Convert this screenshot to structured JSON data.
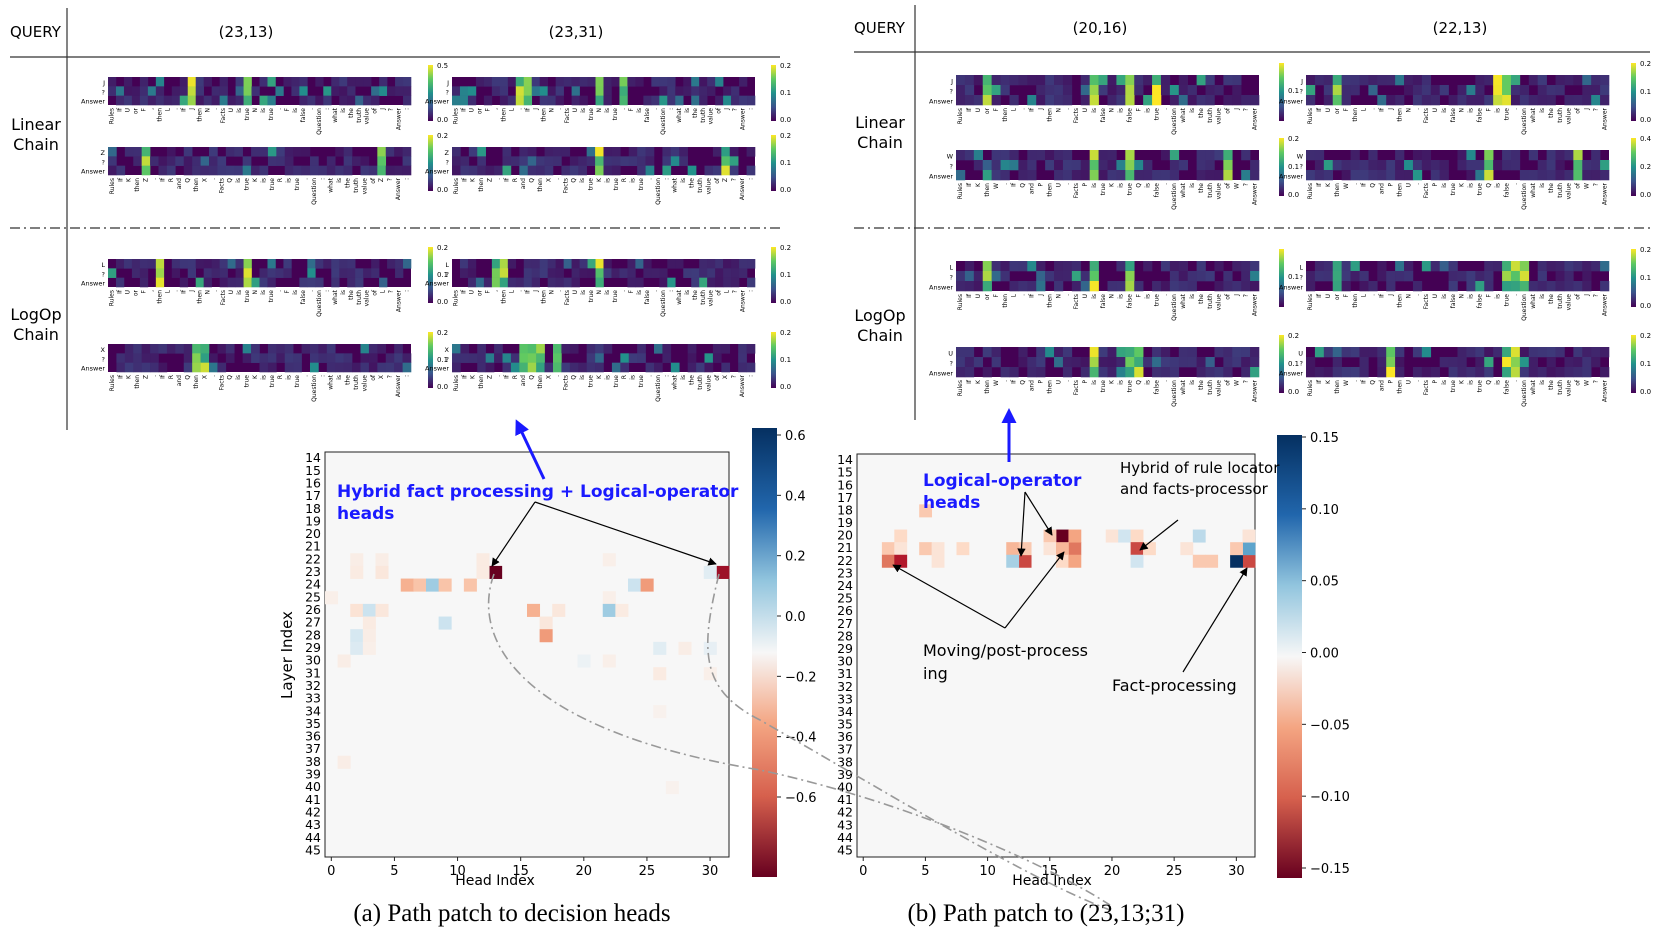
{
  "panel_a": {
    "query_header": "QUERY",
    "queries": [
      "(23,13)",
      "(23,31)"
    ],
    "row_groups": [
      {
        "label_lines": [
          "Linear",
          "Chain"
        ]
      },
      {
        "label_lines": [
          "LogOp",
          "Chain"
        ]
      }
    ],
    "colorbar_ticks": [
      [
        "0.0",
        "0.5"
      ],
      [
        "0.0",
        "0.1",
        "0.2"
      ],
      [
        "0.0",
        "0.2"
      ],
      [
        "0.0",
        "0.1",
        "0.2"
      ],
      [
        "0.0",
        "0.1",
        "0.2"
      ],
      [
        "0.0",
        "0.1",
        "0.2"
      ],
      [
        "0.0",
        "0.1",
        "0.2"
      ],
      [
        "0.0",
        "0.1",
        "0.2"
      ]
    ],
    "caption": "(a) Path patch to decision heads",
    "annotation_blue": [
      "Hybrid fact processing + Logical-operator",
      "heads"
    ]
  },
  "panel_b": {
    "query_header": "QUERY",
    "queries": [
      "(20,16)",
      "(22,13)"
    ],
    "row_groups": [
      {
        "label_lines": [
          "Linear",
          "Chain"
        ]
      },
      {
        "label_lines": [
          "LogOp",
          "Chain"
        ]
      }
    ],
    "colorbar_ticks": [
      [
        "0.1"
      ],
      [
        "0.0",
        "0.1",
        "0.2"
      ],
      [
        "0.0",
        "0.1",
        "0.2"
      ],
      [
        "0.0",
        "0.2",
        "0.4"
      ],
      [
        "0.1"
      ],
      [
        "0.0",
        "0.1",
        "0.2"
      ],
      [
        "0.0",
        "0.1",
        "0.2"
      ],
      [
        "0.0",
        "0.1",
        "0.2"
      ]
    ],
    "caption": "(b) Path patch to (23,13;31)",
    "annotation_blue": [
      "Logical-operator",
      "heads"
    ],
    "annotation_hybrid": [
      "Hybrid of rule locator",
      "and facts-processor"
    ],
    "annotation_moving": [
      "Moving/post-process",
      "ing"
    ],
    "annotation_fact": "Fact-processing"
  },
  "attention_token_labels": {
    "linear_top": [
      "Rules",
      "If",
      "U",
      "or",
      "F",
      ",",
      "then",
      "L",
      ".",
      "If",
      "J",
      "then",
      "N",
      ".",
      "Facts",
      "U",
      "is",
      "true",
      "N",
      "is",
      "true",
      ".",
      "F",
      "is",
      "false",
      ".",
      "Question",
      ":",
      "what",
      "is",
      "the",
      "truth",
      "value",
      "of",
      "J",
      "?",
      "Answer",
      ":"
    ],
    "linear_bottom": [
      "Rules",
      "If",
      "K",
      "then",
      "Z",
      ".",
      "If",
      "R",
      "and",
      "Q",
      "then",
      "X",
      ".",
      "Facts",
      "Q",
      "is",
      "true",
      "K",
      "is",
      "true",
      "R",
      "is",
      "true",
      ".",
      "Question",
      ":",
      "what",
      "is",
      "the",
      "truth",
      "value",
      "of",
      "Z",
      "?",
      "Answer",
      ":"
    ],
    "logop_top": [
      "Rules",
      "If",
      "U",
      "or",
      "F",
      ",",
      "then",
      "L",
      ".",
      "If",
      "J",
      "then",
      "N",
      ".",
      "Facts",
      "U",
      "is",
      "true",
      "N",
      "is",
      "true",
      ".",
      "F",
      "is",
      "false",
      ".",
      "Question",
      ":",
      "what",
      "is",
      "the",
      "truth",
      "value",
      "of",
      "L",
      "?",
      "Answer",
      ":"
    ],
    "logop_bottom": [
      "Rules",
      "If",
      "K",
      "then",
      "Z",
      ".",
      "If",
      "R",
      "and",
      "Q",
      "then",
      "X",
      ".",
      "Facts",
      "Q",
      "is",
      "true",
      "K",
      "is",
      "true",
      "R",
      "is",
      "true",
      ".",
      "Question",
      ":",
      "what",
      "is",
      "the",
      "truth",
      "value",
      "of",
      "X",
      "?",
      "Answer",
      ":"
    ],
    "b_linear_top": [
      "Rules",
      "If",
      "U",
      "or",
      "F",
      "then",
      "L",
      ".",
      "If",
      "J",
      "then",
      "N",
      ".",
      "Facts",
      "U",
      "is",
      "false",
      "N",
      "is",
      "false",
      "F",
      "is",
      "true",
      ".",
      "Question",
      "what",
      "is",
      "the",
      "truth",
      "value",
      "of",
      "J",
      "?",
      "Answer"
    ],
    "b_linear_bottom": [
      "Rules",
      "If",
      "K",
      "then",
      "W",
      ".",
      "If",
      "Q",
      "and",
      "P",
      "then",
      "U",
      ".",
      "Facts",
      "P",
      "is",
      "true",
      "K",
      "is",
      "true",
      "Q",
      "is",
      "false",
      ".",
      "Question",
      "what",
      "is",
      "the",
      "truth",
      "value",
      "of",
      "W",
      "?",
      "Answer"
    ],
    "row_tail_top": [
      "J",
      "?",
      "Answer"
    ],
    "row_tail_bottom": [
      "Z",
      "?",
      "Answer"
    ],
    "row_tail_logop_top": [
      "L",
      "?",
      "Answer"
    ],
    "row_tail_logop_bottom": [
      "X",
      "?",
      "Answer"
    ],
    "b_row_tail_top": [
      "J",
      "?",
      "Answer"
    ],
    "b_row_tail_bottom": [
      "W",
      "?",
      "Answer"
    ],
    "b_row_tail_logop_top": [
      "L",
      "?",
      "Answer"
    ],
    "b_row_tail_logop_bottom": [
      "U",
      "?",
      "Answer"
    ]
  },
  "chart_data": [
    {
      "type": "heatmap",
      "title": "",
      "xlabel": "Head Index",
      "ylabel": "Layer Index",
      "x_ticks": [
        0,
        5,
        10,
        15,
        20,
        25,
        30
      ],
      "y_categories": [
        14,
        15,
        16,
        17,
        18,
        19,
        20,
        21,
        22,
        23,
        24,
        25,
        26,
        27,
        28,
        29,
        30,
        31,
        32,
        33,
        34,
        35,
        36,
        37,
        38,
        39,
        40,
        41,
        42,
        43,
        44,
        45
      ],
      "xlim": [
        0,
        31
      ],
      "colorbar_range": [
        -0.7,
        0.7
      ],
      "colorbar_ticks": [
        "0.6",
        "0.4",
        "0.2",
        "0.0",
        "−0.2",
        "−0.4",
        "−0.6"
      ],
      "cells": [
        [
          23,
          13,
          -0.7
        ],
        [
          23,
          31,
          -0.6
        ],
        [
          22,
          2,
          -0.05
        ],
        [
          22,
          4,
          -0.05
        ],
        [
          22,
          12,
          -0.06
        ],
        [
          22,
          22,
          -0.04
        ],
        [
          24,
          6,
          -0.25
        ],
        [
          24,
          7,
          -0.2
        ],
        [
          24,
          8,
          0.25
        ],
        [
          24,
          9,
          -0.2
        ],
        [
          24,
          11,
          -0.2
        ],
        [
          24,
          24,
          0.15
        ],
        [
          24,
          25,
          -0.3
        ],
        [
          23,
          2,
          -0.06
        ],
        [
          23,
          4,
          -0.08
        ],
        [
          23,
          12,
          -0.06
        ],
        [
          23,
          30,
          0.08
        ],
        [
          25,
          0,
          -0.04
        ],
        [
          25,
          22,
          -0.04
        ],
        [
          26,
          2,
          -0.1
        ],
        [
          26,
          3,
          0.15
        ],
        [
          26,
          4,
          -0.08
        ],
        [
          26,
          16,
          -0.25
        ],
        [
          26,
          18,
          -0.08
        ],
        [
          26,
          22,
          0.25
        ],
        [
          26,
          23,
          -0.06
        ],
        [
          27,
          3,
          -0.06
        ],
        [
          27,
          9,
          0.15
        ],
        [
          27,
          17,
          -0.08
        ],
        [
          28,
          2,
          0.12
        ],
        [
          28,
          3,
          -0.05
        ],
        [
          28,
          17,
          -0.3
        ],
        [
          29,
          2,
          0.1
        ],
        [
          29,
          3,
          -0.04
        ],
        [
          29,
          26,
          0.08
        ],
        [
          29,
          28,
          -0.05
        ],
        [
          29,
          30,
          0.06
        ],
        [
          30,
          1,
          -0.05
        ],
        [
          30,
          20,
          0.04
        ],
        [
          30,
          22,
          -0.04
        ],
        [
          31,
          26,
          -0.06
        ],
        [
          31,
          30,
          -0.04
        ],
        [
          38,
          1,
          -0.05
        ],
        [
          40,
          27,
          -0.03
        ],
        [
          34,
          26,
          -0.03
        ]
      ],
      "annotation": "Hybrid fact processing + Logical-operator heads"
    },
    {
      "type": "heatmap",
      "title": "",
      "xlabel": "Head Index",
      "ylabel": "",
      "x_ticks": [
        0,
        5,
        10,
        15,
        20,
        25,
        30
      ],
      "y_categories": [
        14,
        15,
        16,
        17,
        18,
        19,
        20,
        21,
        22,
        23,
        24,
        25,
        26,
        27,
        28,
        29,
        30,
        31,
        32,
        33,
        34,
        35,
        36,
        37,
        38,
        39,
        40,
        41,
        42,
        43,
        44,
        45
      ],
      "xlim": [
        0,
        31
      ],
      "colorbar_range": [
        -0.15,
        0.15
      ],
      "colorbar_ticks": [
        "0.15",
        "0.10",
        "0.05",
        "0.00",
        "−0.05",
        "−0.10",
        "−0.15"
      ],
      "cells": [
        [
          20,
          16,
          -0.15
        ],
        [
          21,
          17,
          -0.08
        ],
        [
          22,
          13,
          -0.1
        ],
        [
          22,
          31,
          -0.1
        ],
        [
          22,
          30,
          0.15
        ],
        [
          21,
          31,
          0.08
        ],
        [
          21,
          30,
          -0.04
        ],
        [
          20,
          3,
          -0.03
        ],
        [
          20,
          15,
          -0.04
        ],
        [
          20,
          17,
          -0.06
        ],
        [
          20,
          20,
          -0.02
        ],
        [
          20,
          21,
          0.03
        ],
        [
          20,
          22,
          -0.03
        ],
        [
          20,
          27,
          0.04
        ],
        [
          20,
          31,
          -0.02
        ],
        [
          21,
          2,
          -0.04
        ],
        [
          21,
          3,
          -0.02
        ],
        [
          21,
          5,
          -0.04
        ],
        [
          21,
          6,
          -0.02
        ],
        [
          21,
          8,
          -0.03
        ],
        [
          21,
          12,
          -0.05
        ],
        [
          21,
          13,
          -0.04
        ],
        [
          21,
          15,
          -0.02
        ],
        [
          21,
          16,
          -0.05
        ],
        [
          21,
          22,
          -0.1
        ],
        [
          21,
          23,
          -0.03
        ],
        [
          21,
          26,
          -0.02
        ],
        [
          22,
          2,
          -0.08
        ],
        [
          22,
          3,
          -0.12
        ],
        [
          22,
          6,
          -0.02
        ],
        [
          22,
          12,
          0.05
        ],
        [
          22,
          16,
          -0.03
        ],
        [
          22,
          17,
          -0.06
        ],
        [
          22,
          22,
          0.03
        ],
        [
          22,
          27,
          -0.04
        ],
        [
          22,
          28,
          -0.04
        ],
        [
          18,
          5,
          -0.04
        ]
      ],
      "annotation": "Logical-operator heads"
    }
  ]
}
